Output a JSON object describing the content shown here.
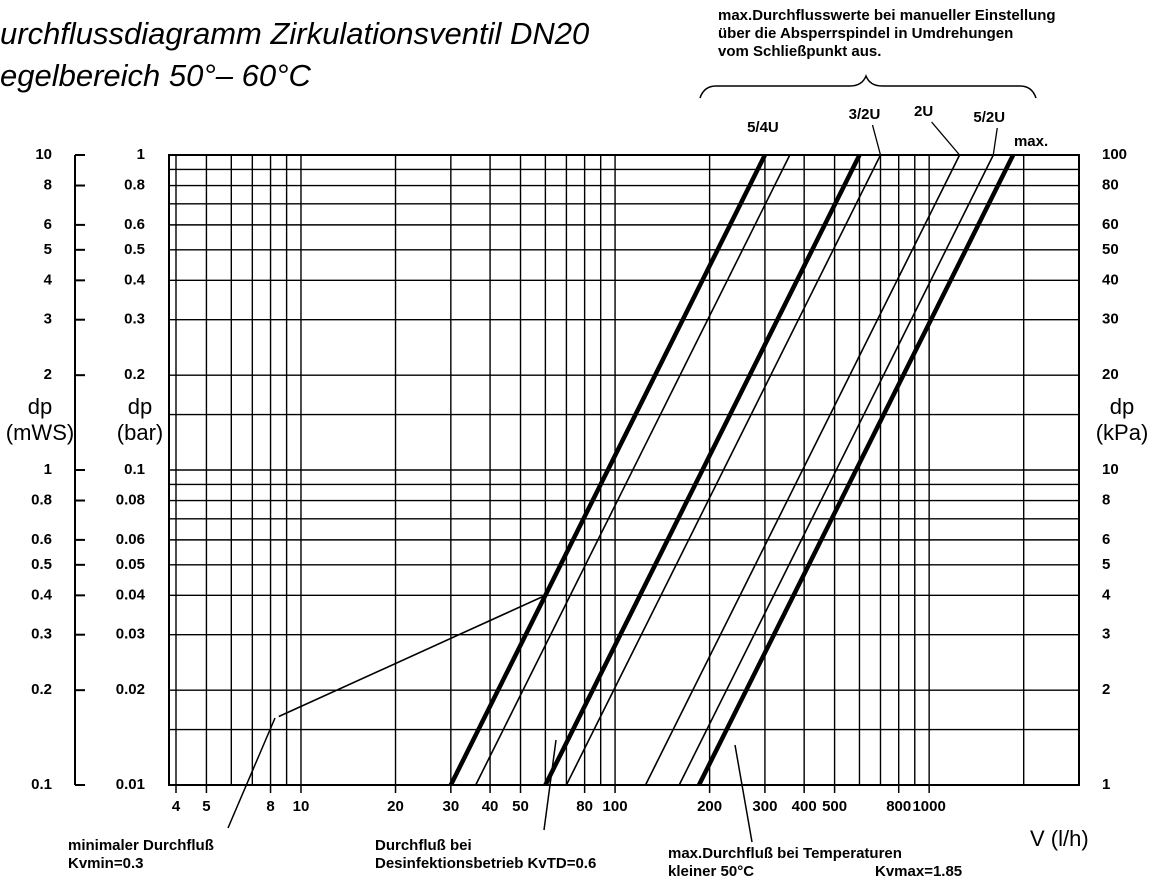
{
  "chart_data": {
    "type": "line",
    "title": "urchflussdiagramm  Zirkulationsventil  DN20",
    "subtitle": "egelbereich  50°–  60°C",
    "note": [
      "max.Durchflusswerte bei manueller Einstellung",
      "über die Absperrspindel in Umdrehungen",
      "vom Schließpunkt aus."
    ],
    "x_label": "V  (l/h)",
    "log_x": true,
    "log_y": true,
    "grid": true,
    "xlim": [
      3.8,
      3000
    ],
    "xticks": [
      4,
      5,
      8,
      10,
      20,
      30,
      40,
      50,
      80,
      100,
      200,
      300,
      400,
      500,
      800,
      1000
    ],
    "xgrid": [
      4,
      5,
      6,
      7,
      8,
      9,
      10,
      20,
      30,
      40,
      50,
      60,
      70,
      80,
      90,
      100,
      200,
      300,
      400,
      500,
      600,
      700,
      800,
      900,
      1000,
      2000,
      3000
    ],
    "ygrid": [
      0.01,
      0.015,
      0.02,
      0.03,
      0.04,
      0.05,
      0.06,
      0.07,
      0.08,
      0.09,
      0.1,
      0.15,
      0.2,
      0.3,
      0.4,
      0.5,
      0.6,
      0.7,
      0.8,
      0.9,
      1
    ],
    "axes": [
      {
        "label": [
          "dp",
          "(mWS)"
        ],
        "lim": [
          0.1,
          10
        ],
        "ticks": [
          10,
          8,
          6,
          5,
          4,
          3,
          2,
          1,
          0.8,
          0.6,
          0.5,
          0.4,
          0.3,
          0.2,
          0.1
        ]
      },
      {
        "label": [
          "dp",
          "(bar)"
        ],
        "lim": [
          0.01,
          1
        ],
        "ticks": [
          1,
          0.8,
          0.6,
          0.5,
          0.4,
          0.3,
          0.2,
          0.1,
          0.08,
          0.06,
          0.05,
          0.04,
          0.03,
          0.02,
          0.01
        ]
      },
      {
        "label": [
          "dp",
          "(kPa)"
        ],
        "lim": [
          1,
          100
        ],
        "ticks": [
          100,
          80,
          60,
          50,
          40,
          30,
          20,
          10,
          8,
          6,
          5,
          4,
          3,
          2,
          1
        ]
      }
    ],
    "series": [
      {
        "label": "5/4U",
        "line_width": "thick",
        "x": [
          30,
          300
        ],
        "y": [
          0.01,
          1
        ]
      },
      {
        "line_width": "thin",
        "x": [
          36,
          360
        ],
        "y": [
          0.01,
          1
        ]
      },
      {
        "line_width": "thick",
        "x": [
          60,
          600
        ],
        "y": [
          0.01,
          1
        ]
      },
      {
        "label": "3/2U",
        "line_width": "thin",
        "x": [
          70,
          700
        ],
        "y": [
          0.01,
          1
        ]
      },
      {
        "label": "2U",
        "line_width": "thin",
        "x": [
          125,
          1250
        ],
        "y": [
          0.01,
          1
        ]
      },
      {
        "label": "5/2U",
        "line_width": "thin",
        "x": [
          160,
          1600
        ],
        "y": [
          0.01,
          1
        ]
      },
      {
        "label": "max.",
        "line_width": "thick",
        "x": [
          185,
          1850
        ],
        "y": [
          0.01,
          1
        ]
      },
      {
        "line_width": "thin",
        "x": [
          8.5,
          60
        ],
        "y": [
          0.0165,
          0.04
        ]
      }
    ],
    "annotations": [
      [
        "minimaler  Durchfluß",
        "Kvmin=0.3"
      ],
      [
        "Durchfluß  bei",
        "Desinfektionsbetrieb  KvTD=0.6"
      ],
      [
        "max.Durchfluß  bei  Temperaturen",
        "kleiner  50°C",
        "Kvmax=1.85"
      ]
    ]
  }
}
